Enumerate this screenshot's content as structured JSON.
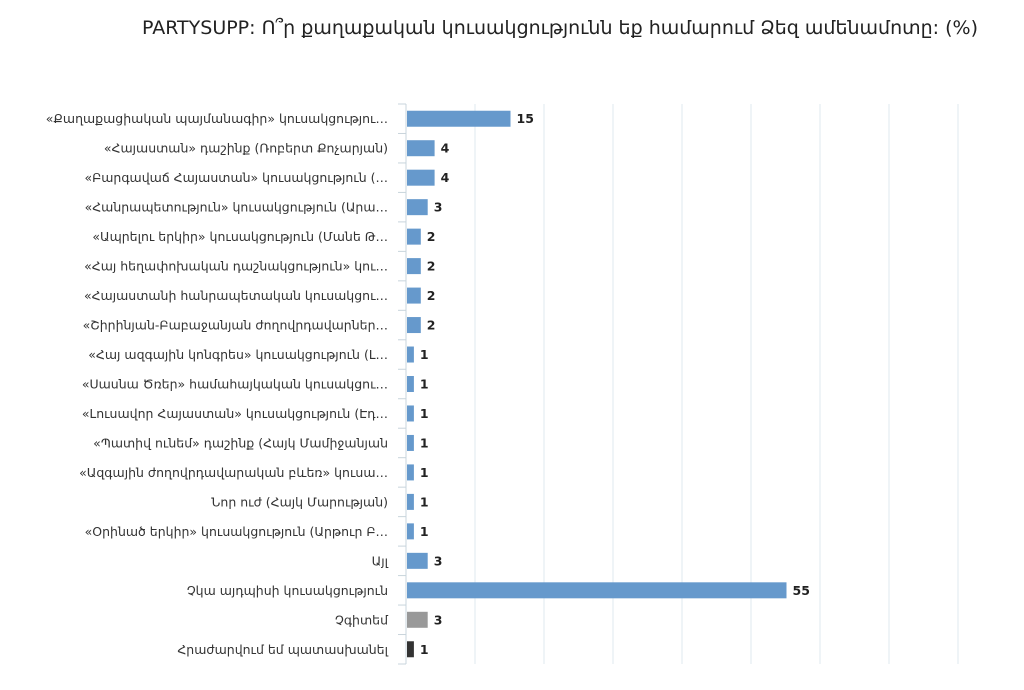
{
  "chart_data": {
    "type": "bar",
    "orientation": "horizontal",
    "title": "PARTYSUPP: Ո՞ր քաղաքական կուսակցությունն եք համարում Ձեզ ամենամոտը: (%)",
    "categories": [
      "«Քաղաքացիական պայմանագիր» կուսակցությու…",
      "«Հայաստան» դաշինք (Ռոբերտ Քոչարյան)",
      "«Բարգավաճ Հայաստան» կուսակցություն (…",
      "«Հանրապետություն» կուսակցություն (Արա…",
      "«Ապրելու երկիր» կուսակցություն (Մանե Թ…",
      "«Հայ հեղափոխական դաշնակցություն» կու…",
      "«Հայաստանի հանրապետական կուսակցու…",
      "«Շիրինյան-Բաբաջանյան ժողովրդավարներ…",
      "«Հայ ազգային կոնգրես» կուսակցություն (Լ…",
      "«Սասնա Ծռեր» համահայկական կուսակցու…",
      "«Լուսավոր Հայաստան» կուսակցություն (Էդ…",
      "«Պատիվ ունեմ» դաշինք (Հայկ Մամիջանյան",
      "«Ազգային ժողովրդավարական բևեռ» կուսա…",
      "Նոր ուժ (Հայկ Մարության)",
      "«Օրինած երկիր» կուսակցություն (Արթուր Բ…",
      "Այլ",
      "Չկա այդպիսի կուսակցություն",
      "Չգիտեմ",
      "Հրաժարվում եմ պատասխանել"
    ],
    "values": [
      15,
      4,
      4,
      3,
      2,
      2,
      2,
      2,
      1,
      1,
      1,
      1,
      1,
      1,
      1,
      3,
      55,
      3,
      1
    ],
    "bar_colors": [
      "#6699cc",
      "#6699cc",
      "#6699cc",
      "#6699cc",
      "#6699cc",
      "#6699cc",
      "#6699cc",
      "#6699cc",
      "#6699cc",
      "#6699cc",
      "#6699cc",
      "#6699cc",
      "#6699cc",
      "#6699cc",
      "#6699cc",
      "#6699cc",
      "#6699cc",
      "#999999",
      "#333333"
    ],
    "xlim": [
      0,
      90
    ],
    "grid": true,
    "gridline_color": "#dfe8ef",
    "xlabel": "",
    "ylabel": ""
  }
}
